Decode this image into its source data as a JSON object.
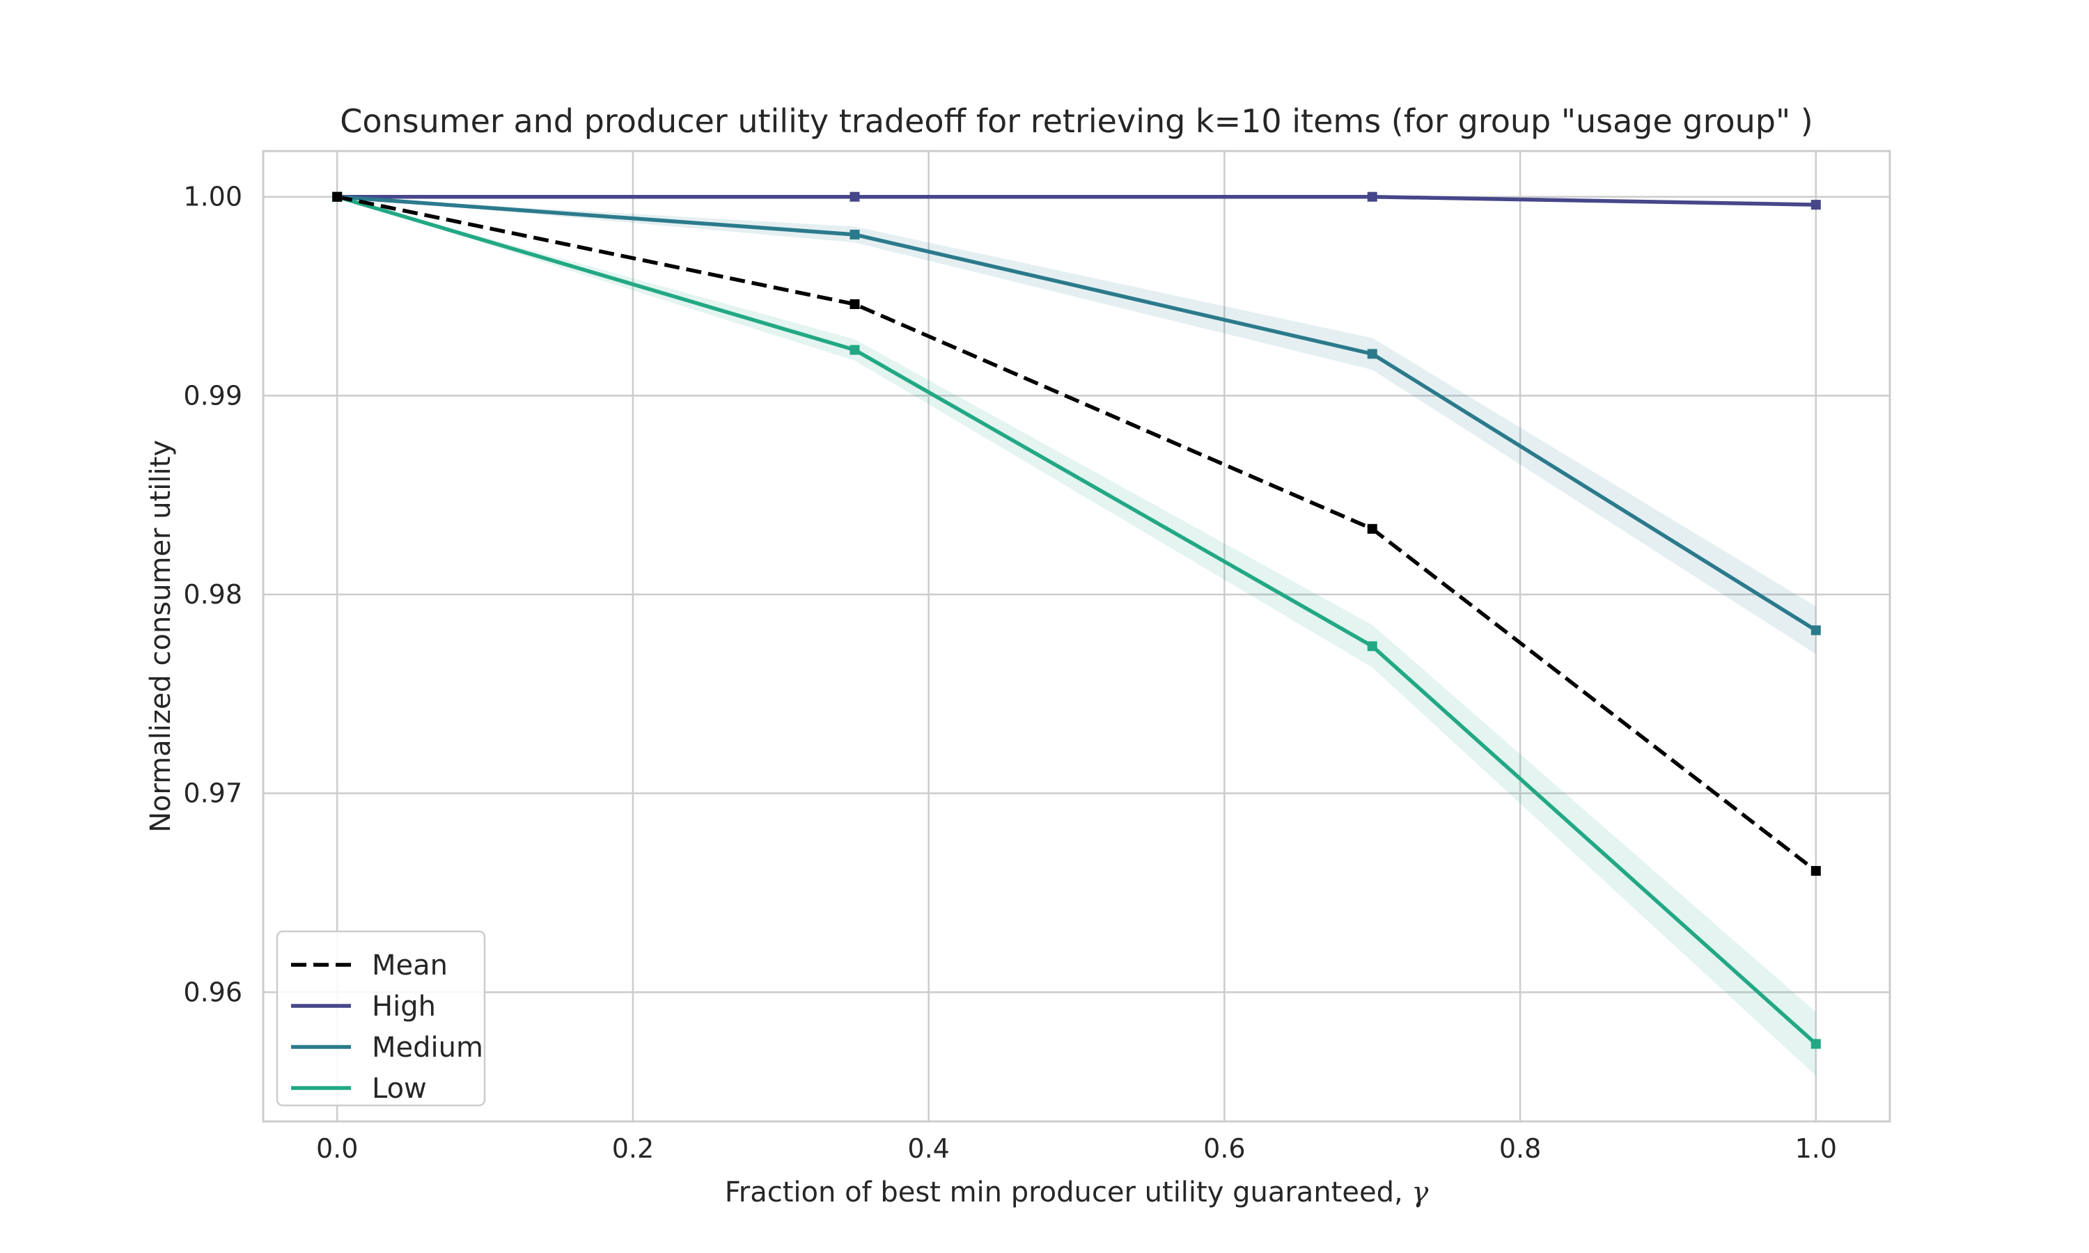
{
  "chart_data": {
    "type": "line",
    "title": "Consumer and producer utility tradeoff for retrieving k=10 items (for group \"usage group\" )",
    "xlabel": "Fraction of best min producer utility guaranteed, ",
    "xlabel_symbol": "γ",
    "ylabel": "Normalized consumer utility",
    "xlim": [
      -0.05,
      1.05
    ],
    "ylim": [
      0.9535,
      1.0023
    ],
    "x_ticks": [
      0.0,
      0.2,
      0.4,
      0.6,
      0.8,
      1.0
    ],
    "x_tick_labels": [
      "0.0",
      "0.2",
      "0.4",
      "0.6",
      "0.8",
      "1.0"
    ],
    "y_ticks": [
      0.96,
      0.97,
      0.98,
      0.99,
      1.0
    ],
    "y_tick_labels": [
      "0.96",
      "0.97",
      "0.98",
      "0.99",
      "1.00"
    ],
    "grid": true,
    "legend_position": "lower-left",
    "x": [
      0.0,
      0.35,
      0.7,
      1.0
    ],
    "series": [
      {
        "name": "Mean",
        "values": [
          1.0,
          0.9946,
          0.9833,
          0.9661
        ],
        "color": "#000000",
        "dashed": true,
        "band": null
      },
      {
        "name": "High",
        "values": [
          1.0,
          1.0,
          1.0,
          0.9996
        ],
        "color": "#46478a",
        "dashed": false,
        "band": 0.0001
      },
      {
        "name": "Medium",
        "values": [
          1.0,
          0.9981,
          0.9921,
          0.9782
        ],
        "color": "#2b7a8c",
        "dashed": false,
        "band": 0.0012
      },
      {
        "name": "Low",
        "values": [
          1.0,
          0.9923,
          0.9774,
          0.9574
        ],
        "color": "#22a884",
        "dashed": false,
        "band": 0.0016
      }
    ]
  }
}
